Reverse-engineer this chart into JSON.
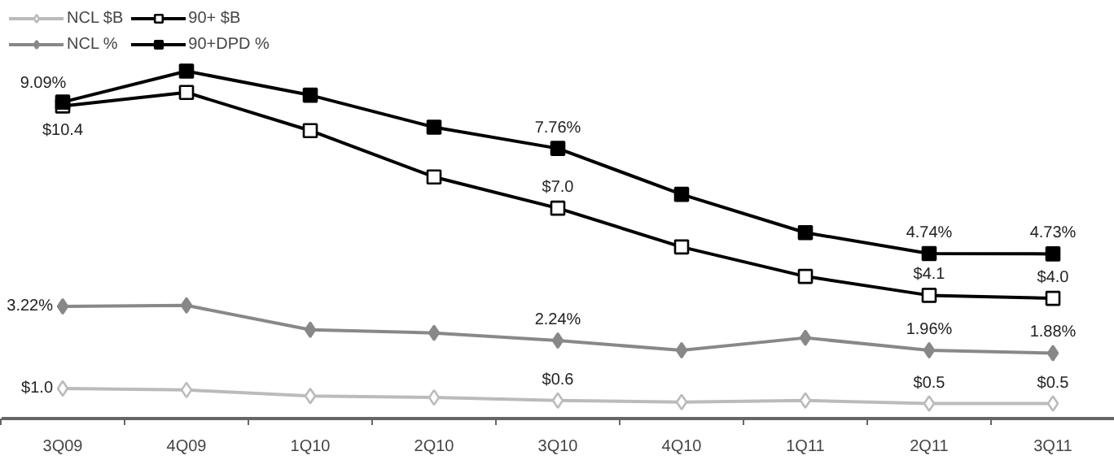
{
  "chart_data": {
    "type": "line",
    "legend": "top left",
    "grid": false,
    "categories": [
      "3Q09",
      "4Q09",
      "1Q10",
      "2Q10",
      "3Q10",
      "4Q10",
      "1Q11",
      "2Q11",
      "3Q11"
    ],
    "ylim": [
      0,
      12
    ],
    "y2lim": [
      0,
      13.9
    ],
    "series": [
      {
        "name": "NCL $B",
        "color": "#bbbbbb",
        "marker": "diamond",
        "axis": "y2",
        "values": [
          1.0,
          0.95,
          0.75,
          0.7,
          0.6,
          0.55,
          0.6,
          0.5,
          0.5
        ],
        "value_labels": [
          "$1.0",
          null,
          null,
          null,
          "$0.6",
          null,
          null,
          "$0.5",
          "$0.5"
        ]
      },
      {
        "name": "NCL %",
        "color": "#888888",
        "marker": "diamond",
        "values": [
          3.22,
          3.25,
          2.55,
          2.46,
          2.24,
          1.96,
          2.32,
          1.96,
          1.88
        ],
        "value_labels": [
          "3.22%",
          null,
          null,
          null,
          "2.24%",
          null,
          null,
          "1.96%",
          "1.88%"
        ]
      },
      {
        "name": "90+ $B",
        "color": "#000000",
        "marker": "square",
        "axis": "y2",
        "values": [
          10.4,
          10.85,
          9.58,
          8.04,
          7.0,
          5.71,
          4.73,
          4.1,
          4.0
        ],
        "value_labels": [
          "$10.4",
          null,
          null,
          null,
          "$7.0",
          null,
          null,
          "$4.1",
          "$4.0"
        ]
      },
      {
        "name": "90+DPD %",
        "color": "#000000",
        "marker": "square",
        "values": [
          9.09,
          9.98,
          9.29,
          8.37,
          7.76,
          6.44,
          5.34,
          4.74,
          4.73
        ],
        "value_labels": [
          "9.09%",
          null,
          null,
          null,
          "7.76%",
          null,
          null,
          "4.74%",
          "4.73%"
        ]
      }
    ]
  }
}
